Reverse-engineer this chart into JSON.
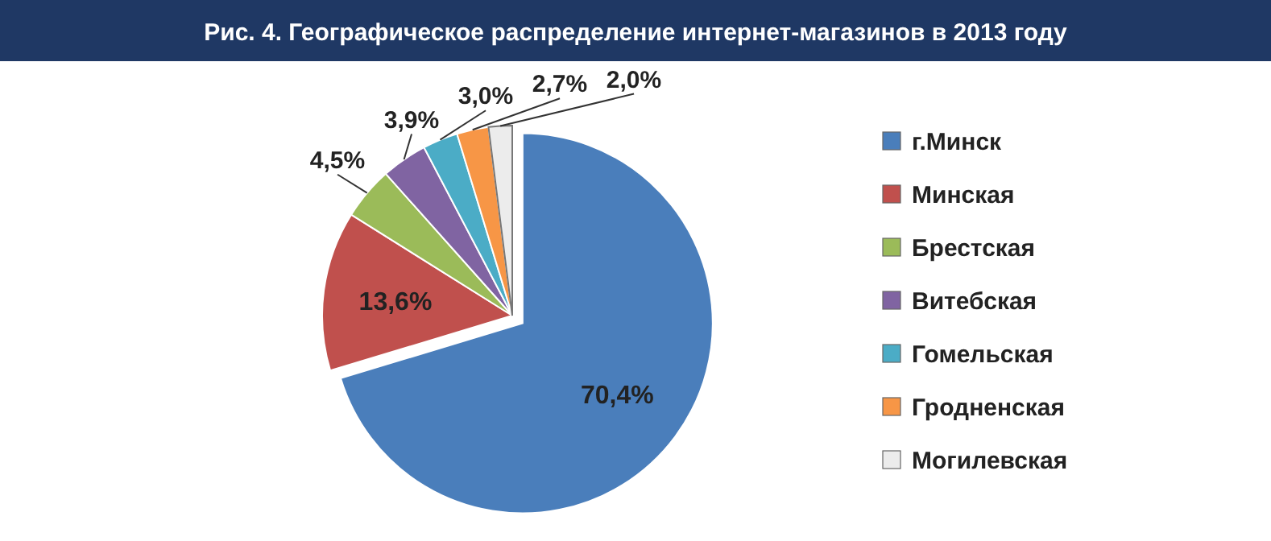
{
  "chart_data": {
    "type": "pie",
    "title": "Рис. 4. Географическое распределение интернет-магазинов в 2013 году",
    "categories": [
      "г.Минск",
      "Минская",
      "Брестская",
      "Витебская",
      "Гомельская",
      "Гродненская",
      "Могилевская"
    ],
    "values": [
      70.4,
      13.6,
      4.5,
      3.9,
      3.0,
      2.7,
      2.0
    ],
    "value_labels": [
      "70,4%",
      "13,6%",
      "4,5%",
      "3,9%",
      "3,0%",
      "2,7%",
      "2,0%"
    ],
    "colors": [
      "#4a7ebb",
      "#c0504d",
      "#9bbb59",
      "#8064a2",
      "#4bacc6",
      "#f79646",
      "#ececec"
    ],
    "legend": "right"
  }
}
